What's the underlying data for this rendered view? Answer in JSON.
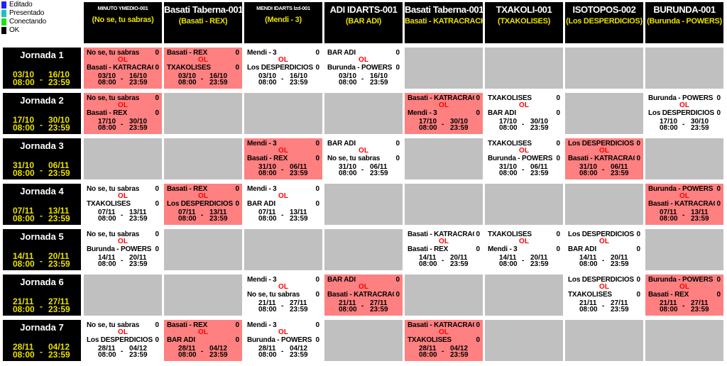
{
  "legend": [
    {
      "label": "Editado",
      "color": "#2020ff"
    },
    {
      "label": "Presentado",
      "color": "#20c0c0"
    },
    {
      "label": "Conectando",
      "color": "#20e020"
    },
    {
      "label": "OK",
      "color": "#000000"
    }
  ],
  "teams": [
    {
      "name": "MINUTO YMEDIO-001",
      "sub": "(No se, tu sabras)",
      "small": true
    },
    {
      "name": "Basati Taberna-001",
      "sub": "(Basati - REX)",
      "small": false
    },
    {
      "name": "MENDI IDARTS lzd-001",
      "sub": "(Mendi - 3)",
      "small": true
    },
    {
      "name": "ADI IDARTS-001",
      "sub": "(BAR ADI)",
      "small": false
    },
    {
      "name": "Basati Taberna-001",
      "sub": "Basati - KATRACRACKS",
      "small": false
    },
    {
      "name": "TXAKOLI-001",
      "sub": "(TXAKOLISES)",
      "small": false
    },
    {
      "name": "ISOTOPOS-002",
      "sub": "(Los DESPERDICIOS)",
      "small": false
    },
    {
      "name": "BURUNDA-001",
      "sub": "(Burunda - POWERS)",
      "small": false
    }
  ],
  "jornadas": [
    {
      "title": "Jornada 1",
      "start": "03/10",
      "end": "16/10",
      "start_time": "08:00",
      "end_time": "23:59",
      "cells": [
        {
          "color": "pink",
          "t1": "No se, tu sabras",
          "s1": "0",
          "ol": "OL",
          "t2": "Basati - KATRACRACKS",
          "s2": "0",
          "d1": "03/10",
          "d2": "16/10",
          "h1": "08:00",
          "h2": "23:59"
        },
        {
          "color": "pink",
          "t1": "Basati - REX",
          "s1": "0",
          "ol": "OL",
          "t2": "TXAKOLISES",
          "s2": "0",
          "d1": "03/10",
          "d2": "16/10",
          "h1": "08:00",
          "h2": "23:59"
        },
        {
          "color": "white",
          "t1": "Mendi - 3",
          "s1": "0",
          "ol": "OL",
          "t2": "Los DESPERDICIOS",
          "s2": "0",
          "d1": "03/10",
          "d2": "16/10",
          "h1": "08:00",
          "h2": "23:59"
        },
        {
          "color": "white",
          "t1": "BAR ADI",
          "s1": "0",
          "ol": "OL",
          "t2": "Burunda - POWERS",
          "s2": "0",
          "d1": "03/10",
          "d2": "16/10",
          "h1": "08:00",
          "h2": "23:59"
        },
        null,
        null,
        null,
        null
      ]
    },
    {
      "title": "Jornada 2",
      "start": "17/10",
      "end": "30/10",
      "start_time": "08:00",
      "end_time": "23:59",
      "cells": [
        {
          "color": "pink",
          "t1": "No se, tu sabras",
          "s1": "0",
          "ol": "OL",
          "t2": "Basati - REX",
          "s2": "0",
          "d1": "17/10",
          "d2": "30/10",
          "h1": "08:00",
          "h2": "23:59"
        },
        null,
        null,
        null,
        {
          "color": "pink",
          "t1": "Basati - KATRACRACKS",
          "s1": "0",
          "ol": "OL",
          "t2": "Mendi - 3",
          "s2": "0",
          "d1": "17/10",
          "d2": "30/10",
          "h1": "08:00",
          "h2": "23:59"
        },
        {
          "color": "white",
          "t1": "TXAKOLISES",
          "s1": "0",
          "ol": "OL",
          "t2": "BAR ADI",
          "s2": "0",
          "d1": "17/10",
          "d2": "30/10",
          "h1": "08:00",
          "h2": "23:59"
        },
        null,
        {
          "color": "white",
          "t1": "Burunda - POWERS",
          "s1": "0",
          "ol": "OL",
          "t2": "Los DESPERDICIOS",
          "s2": "0",
          "d1": "17/10",
          "d2": "30/10",
          "h1": "08:00",
          "h2": "23:59"
        }
      ]
    },
    {
      "title": "Jornada 3",
      "start": "31/10",
      "end": "06/11",
      "start_time": "08:00",
      "end_time": "23:59",
      "cells": [
        null,
        null,
        {
          "color": "pink",
          "t1": "Mendi - 3",
          "s1": "0",
          "ol": "OL",
          "t2": "Basati - REX",
          "s2": "0",
          "d1": "31/10",
          "d2": "06/11",
          "h1": "08:00",
          "h2": "23:59"
        },
        {
          "color": "white",
          "t1": "BAR ADI",
          "s1": "0",
          "ol": "OL",
          "t2": "No se, tu sabras",
          "s2": "0",
          "d1": "31/10",
          "d2": "06/11",
          "h1": "08:00",
          "h2": "23:59"
        },
        null,
        {
          "color": "white",
          "t1": "TXAKOLISES",
          "s1": "0",
          "ol": "OL",
          "t2": "Burunda - POWERS",
          "s2": "0",
          "d1": "31/10",
          "d2": "06/11",
          "h1": "08:00",
          "h2": "23:59"
        },
        {
          "color": "pink",
          "t1": "Los DESPERDICIOS",
          "s1": "0",
          "ol": "OL",
          "t2": "Basati - KATRACRACKS",
          "s2": "0",
          "d1": "31/10",
          "d2": "06/11",
          "h1": "08:00",
          "h2": "23:59"
        },
        null
      ]
    },
    {
      "title": "Jornada 4",
      "start": "07/11",
      "end": "13/11",
      "start_time": "08:00",
      "end_time": "23:59",
      "cells": [
        {
          "color": "white",
          "t1": "No se, tu sabras",
          "s1": "0",
          "ol": "OL",
          "t2": "TXAKOLISES",
          "s2": "0",
          "d1": "07/11",
          "d2": "13/11",
          "h1": "08:00",
          "h2": "23:59"
        },
        {
          "color": "pink",
          "t1": "Basati - REX",
          "s1": "0",
          "ol": "OL",
          "t2": "Los DESPERDICIOS",
          "s2": "0",
          "d1": "07/11",
          "d2": "13/11",
          "h1": "08:00",
          "h2": "23:59"
        },
        {
          "color": "white",
          "t1": "Mendi - 3",
          "s1": "0",
          "ol": "OL",
          "t2": "BAR ADI",
          "s2": "0",
          "d1": "07/11",
          "d2": "13/11",
          "h1": "08:00",
          "h2": "23:59"
        },
        null,
        null,
        null,
        null,
        {
          "color": "pink",
          "t1": "Burunda - POWERS",
          "s1": "0",
          "ol": "OL",
          "t2": "Basati - KATRACRACKS",
          "s2": "0",
          "d1": "07/11",
          "d2": "13/11",
          "h1": "08:00",
          "h2": "23:59"
        }
      ]
    },
    {
      "title": "Jornada 5",
      "start": "14/11",
      "end": "20/11",
      "start_time": "08:00",
      "end_time": "23:59",
      "cells": [
        {
          "color": "white",
          "t1": "No se, tu sabras",
          "s1": "0",
          "ol": "OL",
          "t2": "Burunda - POWERS",
          "s2": "0",
          "d1": "14/11",
          "d2": "20/11",
          "h1": "08:00",
          "h2": "23:59"
        },
        null,
        null,
        null,
        {
          "color": "white",
          "t1": "Basati - KATRACRACKS",
          "s1": "0",
          "ol": "OL",
          "t2": "Basati - REX",
          "s2": "0",
          "d1": "14/11",
          "d2": "20/11",
          "h1": "08:00",
          "h2": "23:59"
        },
        {
          "color": "white",
          "t1": "TXAKOLISES",
          "s1": "0",
          "ol": "OL",
          "t2": "Mendi - 3",
          "s2": "0",
          "d1": "14/11",
          "d2": "20/11",
          "h1": "08:00",
          "h2": "23:59"
        },
        {
          "color": "white",
          "t1": "Los DESPERDICIOS",
          "s1": "0",
          "ol": "OL",
          "t2": "BAR ADI",
          "s2": "0",
          "d1": "14/11",
          "d2": "20/11",
          "h1": "08:00",
          "h2": "23:59"
        },
        null
      ]
    },
    {
      "title": "Jornada 6",
      "start": "21/11",
      "end": "27/11",
      "start_time": "08:00",
      "end_time": "23:59",
      "cells": [
        null,
        null,
        {
          "color": "white",
          "t1": "Mendi - 3",
          "s1": "0",
          "ol": "OL",
          "t2": "No se, tu sabras",
          "s2": "0",
          "d1": "21/11",
          "d2": "27/11",
          "h1": "08:00",
          "h2": "23:59"
        },
        {
          "color": "pink",
          "t1": "BAR ADI",
          "s1": "0",
          "ol": "OL",
          "t2": "Basati - KATRACRACKS",
          "s2": "0",
          "d1": "21/11",
          "d2": "27/11",
          "h1": "08:00",
          "h2": "23:59"
        },
        null,
        null,
        {
          "color": "white",
          "t1": "Los DESPERDICIOS",
          "s1": "0",
          "ol": "OL",
          "t2": "TXAKOLISES",
          "s2": "0",
          "d1": "21/11",
          "d2": "27/11",
          "h1": "08:00",
          "h2": "23:59"
        },
        {
          "color": "pink",
          "t1": "Burunda - POWERS",
          "s1": "0",
          "ol": "OL",
          "t2": "Basati - REX",
          "s2": "0",
          "d1": "21/11",
          "d2": "27/11",
          "h1": "08:00",
          "h2": "23:59"
        }
      ]
    },
    {
      "title": "Jornada 7",
      "start": "28/11",
      "end": "04/12",
      "start_time": "08:00",
      "end_time": "23:59",
      "cells": [
        {
          "color": "white",
          "t1": "No se, tu sabras",
          "s1": "0",
          "ol": "OL",
          "t2": "Los DESPERDICIOS",
          "s2": "0",
          "d1": "28/11",
          "d2": "04/12",
          "h1": "08:00",
          "h2": "23:59"
        },
        {
          "color": "pink",
          "t1": "Basati - REX",
          "s1": "0",
          "ol": "OL",
          "t2": "BAR ADI",
          "s2": "0",
          "d1": "28/11",
          "d2": "04/12",
          "h1": "08:00",
          "h2": "23:59"
        },
        {
          "color": "white",
          "t1": "Mendi - 3",
          "s1": "0",
          "ol": "OL",
          "t2": "Burunda - POWERS",
          "s2": "0",
          "d1": "28/11",
          "d2": "04/12",
          "h1": "08:00",
          "h2": "23:59"
        },
        null,
        {
          "color": "pink",
          "t1": "Basati - KATRACRACKS",
          "s1": "0",
          "ol": "OL",
          "t2": "TXAKOLISES",
          "s2": "0",
          "d1": "28/11",
          "d2": "04/12",
          "h1": "08:00",
          "h2": "23:59"
        },
        null,
        null,
        null
      ]
    }
  ]
}
